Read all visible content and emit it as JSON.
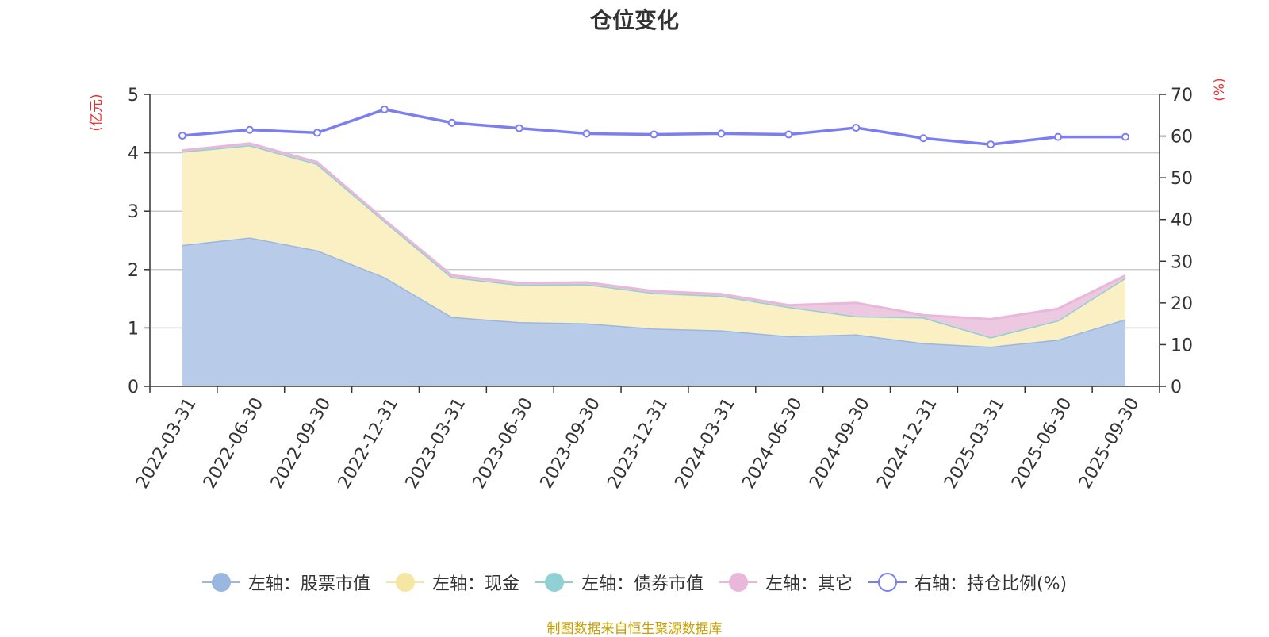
{
  "title": "仓位变化",
  "source_note": "制图数据来自恒生聚源数据库",
  "chart_data": {
    "type": "area",
    "title": "仓位变化",
    "x": [
      "2022-03-31",
      "2022-06-30",
      "2022-09-30",
      "2022-12-31",
      "2023-03-31",
      "2023-06-30",
      "2023-09-30",
      "2023-12-31",
      "2024-03-31",
      "2024-06-30",
      "2024-09-30",
      "2024-12-31",
      "2025-03-31",
      "2025-06-30",
      "2025-09-30"
    ],
    "y_left": {
      "label": "(亿元)",
      "min": 0,
      "max": 5,
      "ticks": [
        "0",
        "1",
        "2",
        "3",
        "4",
        "5"
      ]
    },
    "y_right": {
      "label": "(%)",
      "min": 0,
      "max": 70,
      "ticks": [
        "0",
        "10",
        "20",
        "30",
        "40",
        "50",
        "60",
        "70"
      ]
    },
    "grid": true,
    "legend_position": "bottom",
    "series": [
      {
        "name": "左轴：股票市值",
        "axis": "left",
        "stack": true,
        "color": "#9ab7e0",
        "fill": "#b8cbe9",
        "values": [
          2.42,
          2.55,
          2.33,
          1.87,
          1.19,
          1.1,
          1.08,
          0.99,
          0.96,
          0.86,
          0.89,
          0.74,
          0.68,
          0.8,
          1.15
        ]
      },
      {
        "name": "左轴：现金",
        "axis": "left",
        "stack": true,
        "color": "#f6e6a4",
        "fill": "#faf0c4",
        "values": [
          1.6,
          1.58,
          1.48,
          0.96,
          0.68,
          0.64,
          0.67,
          0.61,
          0.59,
          0.5,
          0.31,
          0.44,
          0.16,
          0.33,
          0.71
        ]
      },
      {
        "name": "左轴：债券市值",
        "axis": "left",
        "stack": true,
        "color": "#8fd1d4",
        "fill": "#b8e3e5",
        "values": [
          0,
          0,
          0,
          0,
          0,
          0,
          0,
          0,
          0,
          0,
          0,
          0,
          0,
          0,
          0
        ]
      },
      {
        "name": "左轴：其它",
        "axis": "left",
        "stack": true,
        "color": "#e9b7d9",
        "fill": "#ecc9e0",
        "values": [
          0.02,
          0.03,
          0.03,
          0.02,
          0.03,
          0.03,
          0.03,
          0.03,
          0.03,
          0.03,
          0.23,
          0.04,
          0.31,
          0.2,
          0.04
        ]
      },
      {
        "name": "右轴：持仓比例(%)",
        "axis": "right",
        "type": "line",
        "color": "#7b7ef0",
        "values": [
          60.1,
          61.5,
          60.8,
          66.4,
          63.2,
          61.9,
          60.6,
          60.4,
          60.6,
          60.4,
          62.0,
          59.5,
          58.0,
          59.8,
          59.8
        ]
      }
    ]
  }
}
